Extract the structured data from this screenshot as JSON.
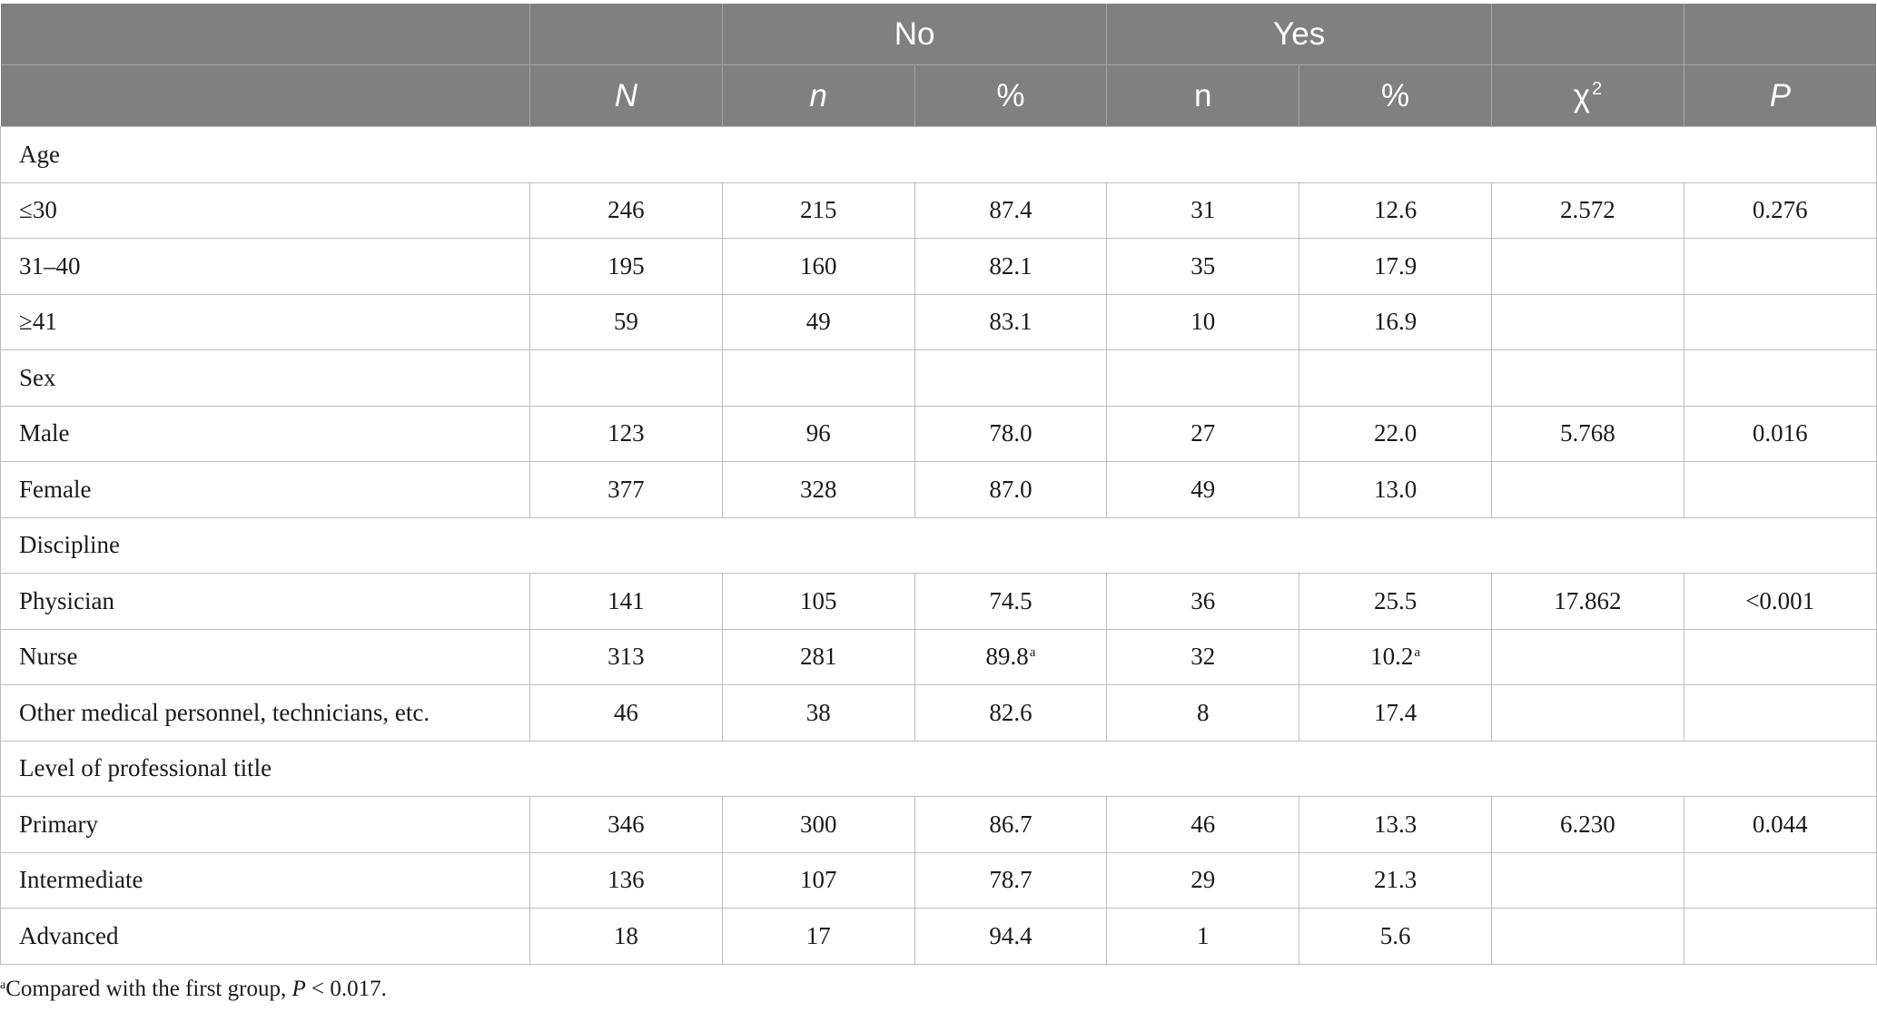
{
  "header": {
    "group_no": "No",
    "group_yes": "Yes",
    "col_N": "N",
    "col_n_no": "n",
    "col_pct_no": "%",
    "col_n_yes": "n",
    "col_pct_yes": "%",
    "col_chi": "χ",
    "col_chi_sup": "2",
    "col_P": "P"
  },
  "rows": [
    {
      "label": "Age",
      "cells": [
        "",
        "",
        "",
        "",
        "",
        "",
        ""
      ],
      "section": true
    },
    {
      "label": "≤30",
      "cells": [
        "246",
        "215",
        "87.4",
        "31",
        "12.6",
        "2.572",
        "0.276"
      ]
    },
    {
      "label": "31–40",
      "cells": [
        "195",
        "160",
        "82.1",
        "35",
        "17.9",
        "",
        ""
      ]
    },
    {
      "label": "≥41",
      "cells": [
        "59",
        "49",
        "83.1",
        "10",
        "16.9",
        "",
        ""
      ]
    },
    {
      "label": "Sex",
      "cells": [
        "",
        "",
        "",
        "",
        "",
        "",
        ""
      ],
      "section": true,
      "bordered": true
    },
    {
      "label": "Male",
      "cells": [
        "123",
        "96",
        "78.0",
        "27",
        "22.0",
        "5.768",
        "0.016"
      ]
    },
    {
      "label": "Female",
      "cells": [
        "377",
        "328",
        "87.0",
        "49",
        "13.0",
        "",
        ""
      ]
    },
    {
      "label": "Discipline",
      "cells": [
        "",
        "",
        "",
        "",
        "",
        "",
        ""
      ],
      "section": true
    },
    {
      "label": "Physician",
      "cells": [
        "141",
        "105",
        "74.5",
        "36",
        "25.5",
        "17.862",
        "<0.001"
      ]
    },
    {
      "label": "Nurse",
      "cells": [
        "313",
        "281",
        "89.8",
        "32",
        "10.2",
        "",
        ""
      ],
      "sups": {
        "2": "a",
        "4": "a"
      }
    },
    {
      "label": "Other medical personnel, technicians, etc.",
      "cells": [
        "46",
        "38",
        "82.6",
        "8",
        "17.4",
        "",
        ""
      ]
    },
    {
      "label": "Level of professional title",
      "cells": [
        "",
        "",
        "",
        "",
        "",
        "",
        ""
      ],
      "section": true
    },
    {
      "label": "Primary",
      "cells": [
        "346",
        "300",
        "86.7",
        "46",
        "13.3",
        "6.230",
        "0.044"
      ]
    },
    {
      "label": "Intermediate",
      "cells": [
        "136",
        "107",
        "78.7",
        "29",
        "21.3",
        "",
        ""
      ]
    },
    {
      "label": "Advanced",
      "cells": [
        "18",
        "17",
        "94.4",
        "1",
        "5.6",
        "",
        ""
      ]
    }
  ],
  "footnote": {
    "marker": "a",
    "text": "Compared with the first group, ",
    "p_symbol": "P",
    "p_value": " < 0.017."
  }
}
